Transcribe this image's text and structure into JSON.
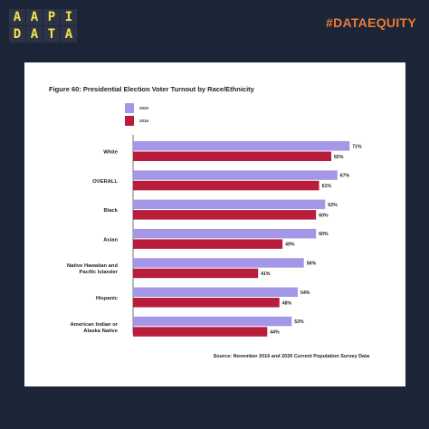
{
  "brand": {
    "logo_letters": [
      "A",
      "A",
      "P",
      "I",
      "D",
      "A",
      "T",
      "A"
    ],
    "hashtag": "#DATAEQUITY"
  },
  "colors": {
    "background": "#1b2537",
    "logo_text": "#f1e34a",
    "hashtag": "#ee7a35",
    "series_2020": "#a597e8",
    "series_2016": "#b81d3c"
  },
  "figure": {
    "title": "Figure 60: Presidential Election Voter Turnout by Race/Ethnicity",
    "source": "Source: November 2016 and 2020 Current Population Survey Data"
  },
  "chart_data": {
    "type": "bar",
    "orientation": "horizontal",
    "title": "Figure 60: Presidential Election Voter Turnout by Race/Ethnicity",
    "categories": [
      "White",
      "OVERALL",
      "Black",
      "Asian",
      "Native Hawaiian and Pacific Islander",
      "Hispanic",
      "American Indian or Alaska Native"
    ],
    "series": [
      {
        "name": "2020",
        "values": [
          71,
          67,
          63,
          60,
          56,
          54,
          52
        ]
      },
      {
        "name": "2016",
        "values": [
          65,
          61,
          60,
          49,
          41,
          48,
          44
        ]
      }
    ],
    "value_suffix": "%",
    "legend_position": "top-left",
    "grid": false
  }
}
